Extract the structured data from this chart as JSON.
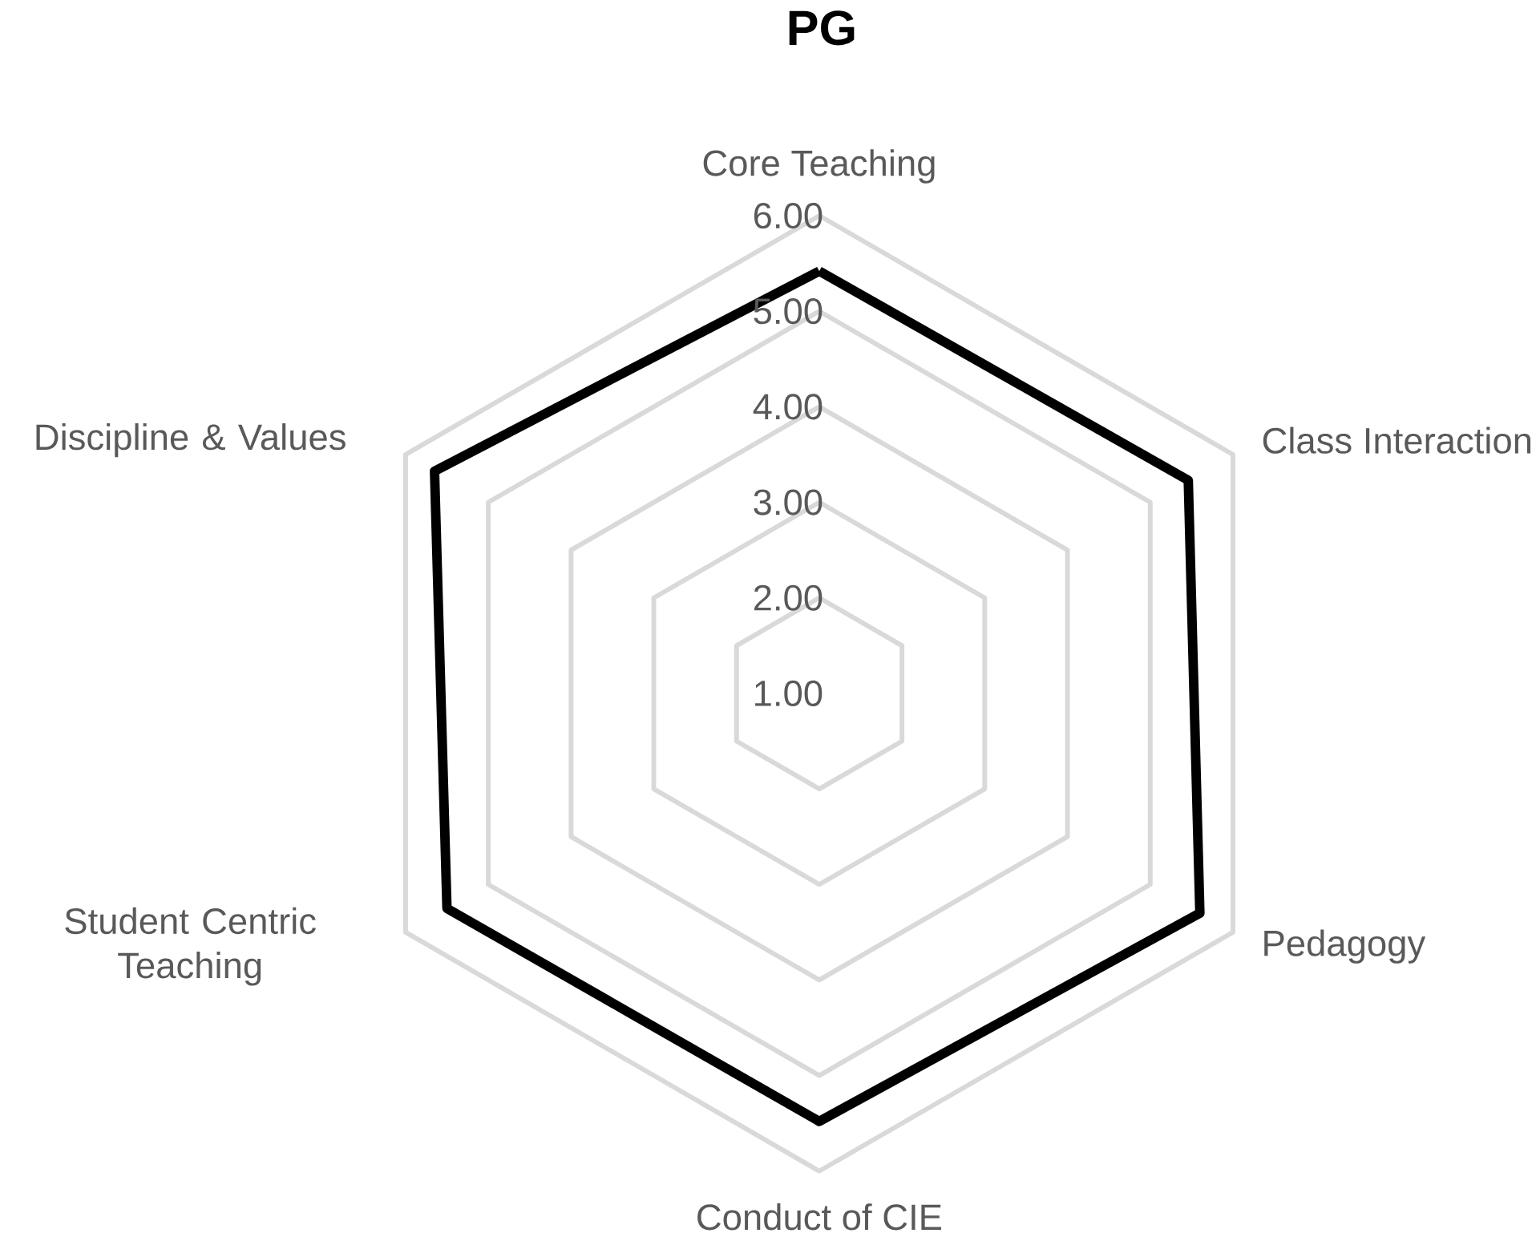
{
  "chart_data": {
    "type": "radar",
    "title": "PG",
    "categories": [
      "Core Teaching",
      "Class Interaction",
      "Pedagogy",
      "Conduct of CIE",
      "Student Centric Teaching",
      "Discipline & Values"
    ],
    "series": [
      {
        "color": "#000000",
        "values": [
          5.42,
          5.46,
          5.6,
          5.48,
          5.5,
          5.65
        ]
      }
    ],
    "ylim": [
      1,
      6
    ],
    "yticks": [
      {
        "value": 1,
        "label": "1.00"
      },
      {
        "value": 2,
        "label": "2.00"
      },
      {
        "value": 3,
        "label": "3.00"
      },
      {
        "value": 4,
        "label": "4.00"
      },
      {
        "value": 5,
        "label": "5.00"
      },
      {
        "value": 6,
        "label": "6.00"
      }
    ],
    "grid": true
  }
}
